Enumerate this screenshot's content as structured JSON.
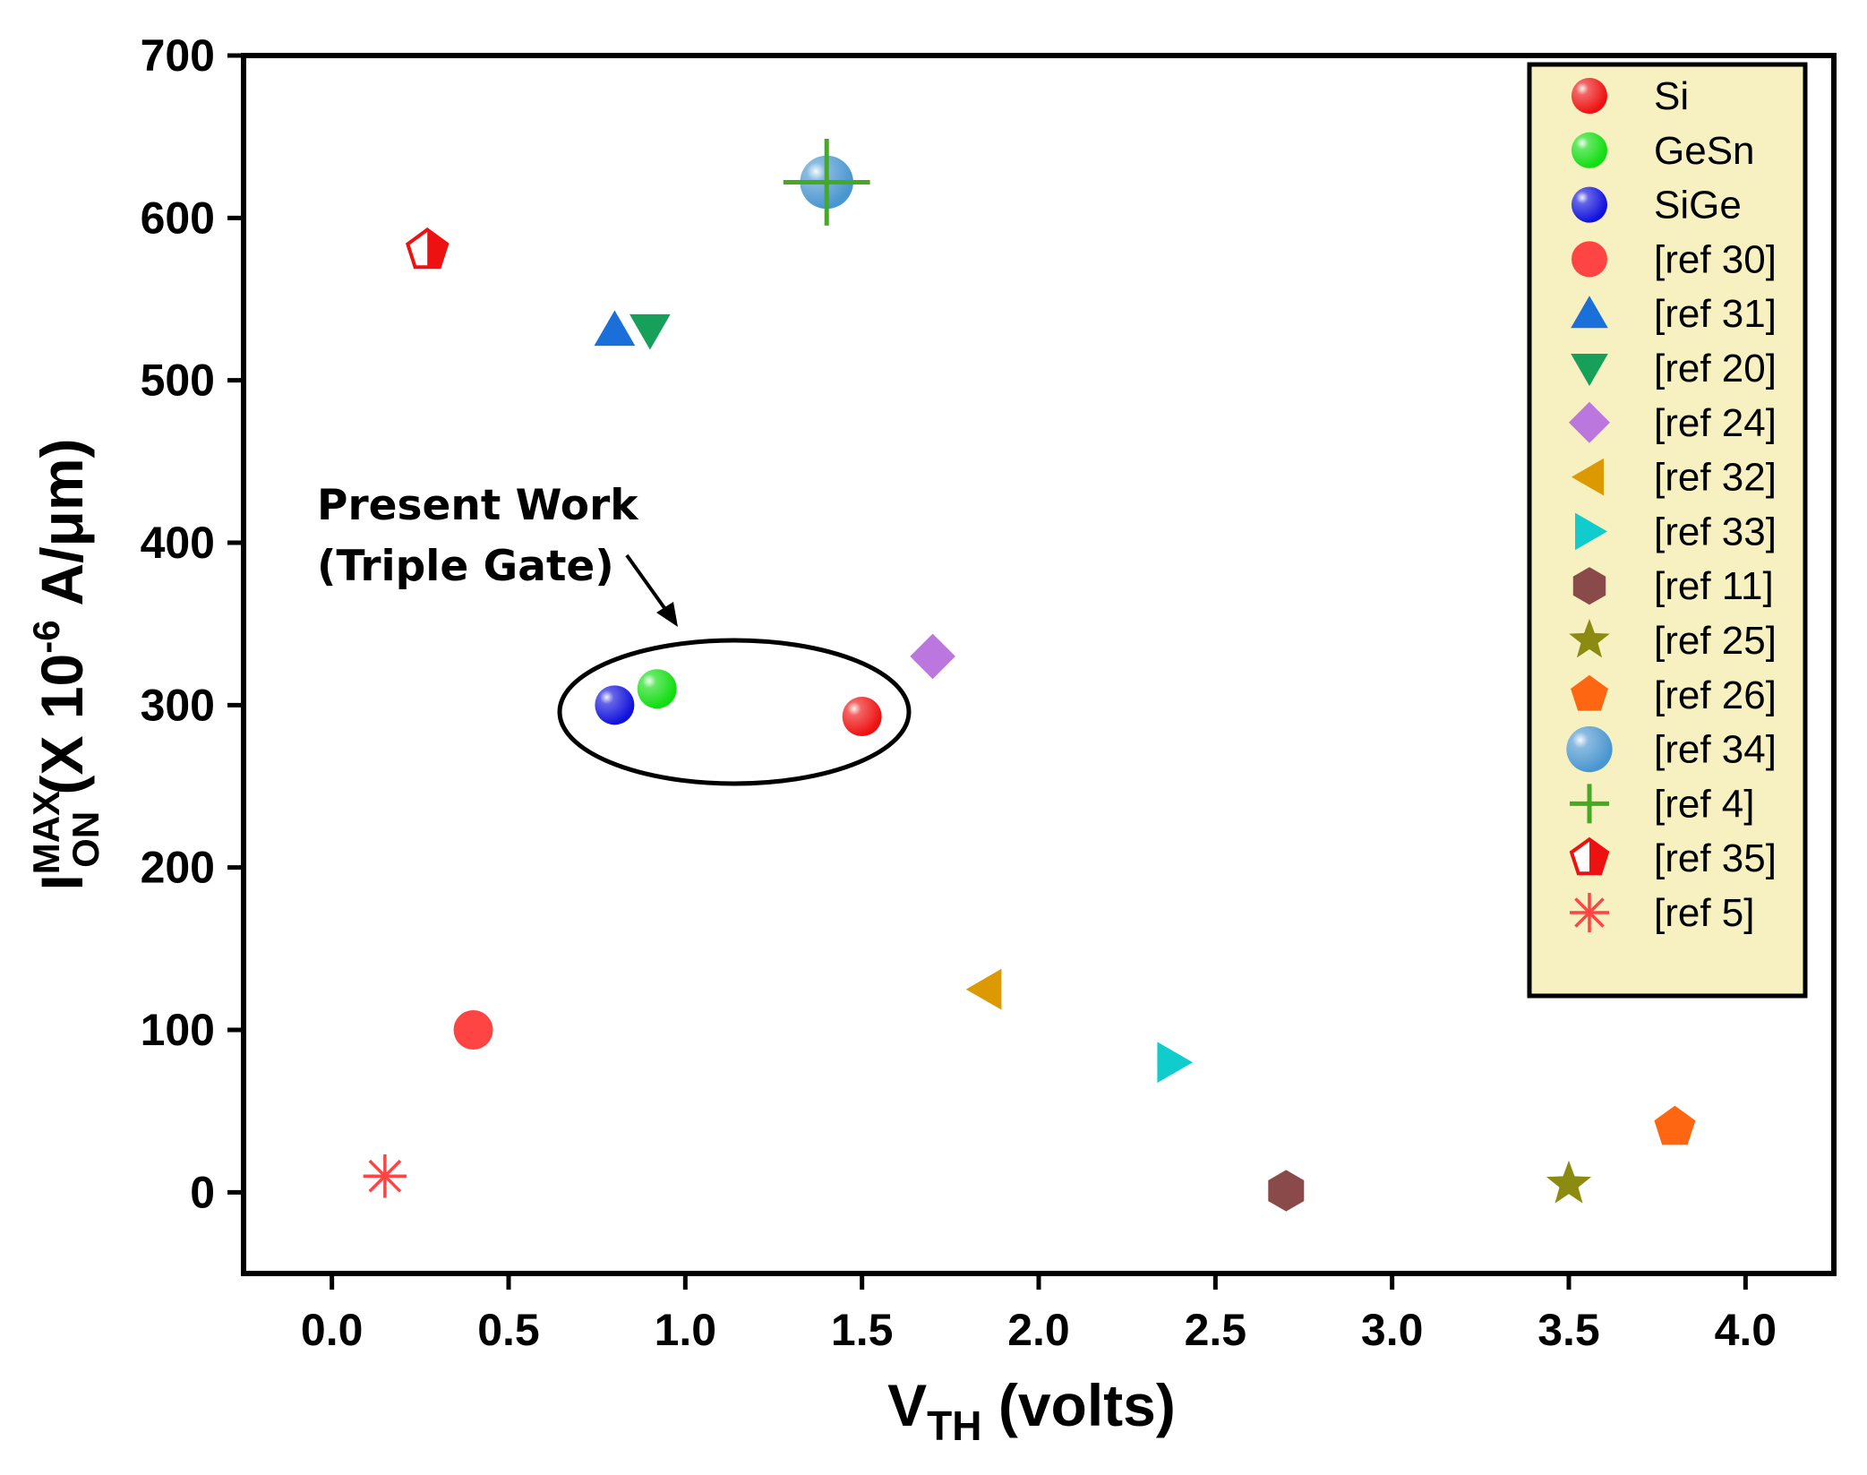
{
  "chart_data": {
    "type": "scatter",
    "title": "",
    "xlabel": {
      "main": "V",
      "sub": "TH",
      "rest": " (volts)"
    },
    "ylabel": {
      "main": "I",
      "sup": "MAX",
      "sub": "ON",
      "rest1": " (X 10",
      "exp": "-6",
      "rest2": " A/μm)"
    },
    "xlim": [
      -0.25,
      4.25
    ],
    "ylim": [
      -50,
      700
    ],
    "xticks": [
      0.0,
      0.5,
      1.0,
      1.5,
      2.0,
      2.5,
      3.0,
      3.5,
      4.0
    ],
    "xtick_labels": [
      "0.0",
      "0.5",
      "1.0",
      "1.5",
      "2.0",
      "2.5",
      "3.0",
      "3.5",
      "4.0"
    ],
    "yticks": [
      0,
      100,
      200,
      300,
      400,
      500,
      600,
      700
    ],
    "ytick_labels": [
      "0",
      "100",
      "200",
      "300",
      "400",
      "500",
      "600",
      "700"
    ],
    "grid": false,
    "legend_position": "top-right",
    "series": [
      {
        "name": "Si",
        "marker": "ball",
        "color": "#ee1111",
        "x": [
          1.5
        ],
        "y": [
          293
        ]
      },
      {
        "name": "GeSn",
        "marker": "ball",
        "color": "#11dd11",
        "x": [
          0.92
        ],
        "y": [
          310
        ]
      },
      {
        "name": "SiGe",
        "marker": "ball",
        "color": "#1111dd",
        "x": [
          0.8
        ],
        "y": [
          300
        ]
      },
      {
        "name": "[ref 30]",
        "marker": "circle",
        "color": "#ff4444",
        "x": [
          0.4
        ],
        "y": [
          100
        ]
      },
      {
        "name": "[ref 31]",
        "marker": "triangle-up",
        "color": "#1a6fd8",
        "x": [
          0.8
        ],
        "y": [
          531
        ]
      },
      {
        "name": "[ref 20]",
        "marker": "triangle-down",
        "color": "#16a05a",
        "x": [
          0.9
        ],
        "y": [
          531
        ]
      },
      {
        "name": "[ref 24]",
        "marker": "diamond",
        "color": "#bb77dd",
        "x": [
          1.7
        ],
        "y": [
          330
        ]
      },
      {
        "name": "[ref 32]",
        "marker": "triangle-left",
        "color": "#dd9900",
        "x": [
          1.85
        ],
        "y": [
          125
        ]
      },
      {
        "name": "[ref 33]",
        "marker": "triangle-right",
        "color": "#11cccc",
        "x": [
          2.38
        ],
        "y": [
          80
        ]
      },
      {
        "name": "[ref 11]",
        "marker": "hexagon",
        "color": "#8b4a4a",
        "x": [
          2.7
        ],
        "y": [
          1
        ]
      },
      {
        "name": "[ref 25]",
        "marker": "star",
        "color": "#8b8b11",
        "x": [
          3.5
        ],
        "y": [
          5
        ]
      },
      {
        "name": "[ref 26]",
        "marker": "pentagon",
        "color": "#ff6611",
        "x": [
          3.8
        ],
        "y": [
          40
        ]
      },
      {
        "name": "[ref 34]",
        "marker": "bigball",
        "color": "#4a96d0",
        "x": [
          1.4
        ],
        "y": [
          622
        ]
      },
      {
        "name": "[ref 4]",
        "marker": "plus",
        "color": "#44aa22",
        "x": [
          1.4
        ],
        "y": [
          622
        ]
      },
      {
        "name": "[ref 35]",
        "marker": "half-pentagon",
        "color": "#ee1111",
        "x": [
          0.27
        ],
        "y": [
          580
        ]
      },
      {
        "name": "[ref 5]",
        "marker": "asterisk",
        "color": "#ff4444",
        "x": [
          0.15
        ],
        "y": [
          10
        ]
      }
    ],
    "annotations": [
      {
        "lines": [
          "Present Work",
          "(Triple Gate)"
        ]
      }
    ]
  }
}
